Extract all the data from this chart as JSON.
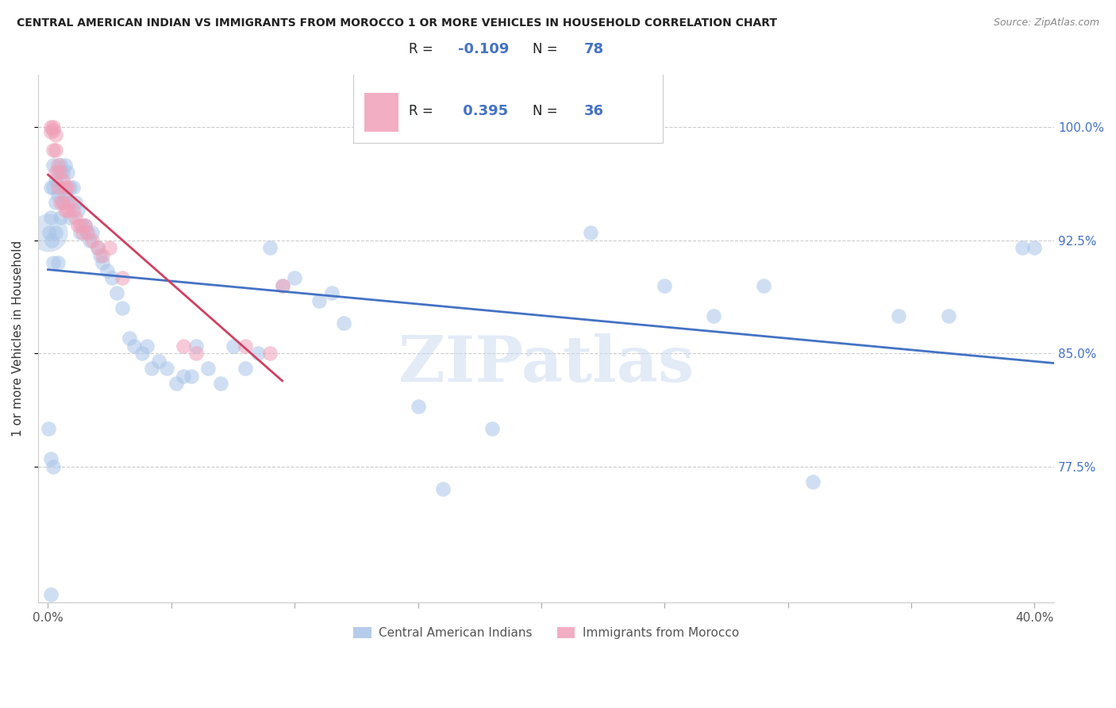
{
  "title": "CENTRAL AMERICAN INDIAN VS IMMIGRANTS FROM MOROCCO 1 OR MORE VEHICLES IN HOUSEHOLD CORRELATION CHART",
  "source": "Source: ZipAtlas.com",
  "ylabel": "1 or more Vehicles in Household",
  "yticks": [
    "100.0%",
    "92.5%",
    "85.0%",
    "77.5%"
  ],
  "ytick_vals": [
    1.0,
    0.925,
    0.85,
    0.775
  ],
  "xlim": [
    -0.004,
    0.408
  ],
  "ylim": [
    0.685,
    1.035
  ],
  "legend_blue": {
    "R": "-0.109",
    "N": "78",
    "label": "Central American Indians"
  },
  "legend_pink": {
    "R": "0.395",
    "N": "36",
    "label": "Immigrants from Morocco"
  },
  "blue_color": "#a8c4e8",
  "pink_color": "#f0a0b8",
  "blue_line_color": "#4472c4",
  "pink_line_color": "#d04060",
  "watermark": "ZIPatlas",
  "background_color": "#ffffff",
  "blue_x": [
    0.0002,
    0.0005,
    0.001,
    0.001,
    0.001,
    0.0015,
    0.002,
    0.002,
    0.002,
    0.003,
    0.003,
    0.003,
    0.004,
    0.004,
    0.004,
    0.005,
    0.005,
    0.005,
    0.006,
    0.006,
    0.007,
    0.007,
    0.008,
    0.008,
    0.009,
    0.009,
    0.01,
    0.011,
    0.012,
    0.013,
    0.014,
    0.015,
    0.016,
    0.017,
    0.018,
    0.02,
    0.021,
    0.022,
    0.024,
    0.026,
    0.028,
    0.03,
    0.033,
    0.035,
    0.038,
    0.04,
    0.042,
    0.045,
    0.048,
    0.052,
    0.055,
    0.058,
    0.06,
    0.065,
    0.07,
    0.075,
    0.08,
    0.085,
    0.09,
    0.095,
    0.1,
    0.11,
    0.115,
    0.12,
    0.15,
    0.16,
    0.18,
    0.22,
    0.25,
    0.27,
    0.29,
    0.31,
    0.345,
    0.365,
    0.395,
    0.4,
    0.001,
    0.002
  ],
  "blue_y": [
    0.8,
    0.93,
    0.96,
    0.94,
    0.78,
    0.925,
    0.975,
    0.96,
    0.91,
    0.965,
    0.95,
    0.93,
    0.97,
    0.955,
    0.91,
    0.975,
    0.96,
    0.94,
    0.97,
    0.95,
    0.975,
    0.955,
    0.97,
    0.95,
    0.96,
    0.94,
    0.96,
    0.95,
    0.945,
    0.93,
    0.935,
    0.935,
    0.93,
    0.925,
    0.93,
    0.92,
    0.915,
    0.91,
    0.905,
    0.9,
    0.89,
    0.88,
    0.86,
    0.855,
    0.85,
    0.855,
    0.84,
    0.845,
    0.84,
    0.83,
    0.835,
    0.835,
    0.855,
    0.84,
    0.83,
    0.855,
    0.84,
    0.85,
    0.92,
    0.895,
    0.9,
    0.885,
    0.89,
    0.87,
    0.815,
    0.76,
    0.8,
    0.93,
    0.895,
    0.875,
    0.895,
    0.765,
    0.875,
    0.875,
    0.92,
    0.92,
    0.69,
    0.775
  ],
  "pink_x": [
    0.001,
    0.001,
    0.002,
    0.002,
    0.002,
    0.003,
    0.003,
    0.003,
    0.004,
    0.004,
    0.005,
    0.005,
    0.006,
    0.006,
    0.007,
    0.007,
    0.008,
    0.008,
    0.009,
    0.01,
    0.011,
    0.012,
    0.013,
    0.014,
    0.015,
    0.016,
    0.018,
    0.02,
    0.022,
    0.025,
    0.03,
    0.055,
    0.06,
    0.08,
    0.09,
    0.095
  ],
  "pink_y": [
    1.0,
    0.997,
    1.0,
    0.998,
    0.985,
    0.995,
    0.985,
    0.97,
    0.975,
    0.96,
    0.97,
    0.95,
    0.965,
    0.95,
    0.96,
    0.945,
    0.96,
    0.945,
    0.95,
    0.945,
    0.94,
    0.935,
    0.935,
    0.93,
    0.935,
    0.93,
    0.925,
    0.92,
    0.915,
    0.92,
    0.9,
    0.855,
    0.85,
    0.855,
    0.85,
    0.895
  ],
  "blue_line_xlim": [
    0.0,
    0.408
  ],
  "pink_line_xlim": [
    0.0,
    0.095
  ],
  "blue_line_slope": -0.109,
  "pink_line_slope": 0.395
}
